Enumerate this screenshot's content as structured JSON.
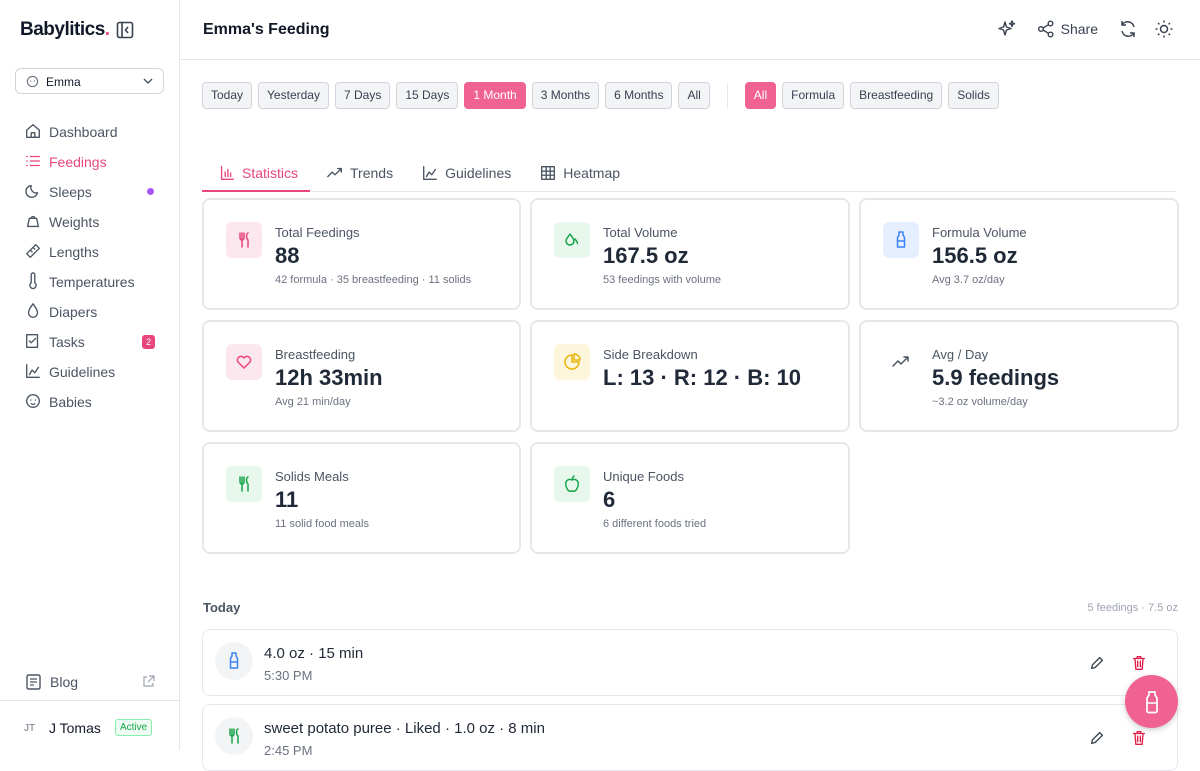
{
  "sidebar": {
    "brand": "Babylitics",
    "brand_dot": ".",
    "baby": "Emma",
    "nav": [
      {
        "label": "Dashboard"
      },
      {
        "label": "Feedings",
        "active": true
      },
      {
        "label": "Sleeps"
      },
      {
        "label": "Weights"
      },
      {
        "label": "Lengths"
      },
      {
        "label": "Temperatures"
      },
      {
        "label": "Diapers"
      },
      {
        "label": "Tasks",
        "badge": "2"
      },
      {
        "label": "Guidelines"
      },
      {
        "label": "Babies"
      }
    ],
    "blog": "Blog",
    "user_initials": "JT",
    "user_name": "J Tomas",
    "user_status": "Active"
  },
  "header": {
    "title": "Emma's Feeding",
    "share": "Share"
  },
  "range_filters": [
    {
      "label": "Today"
    },
    {
      "label": "Yesterday"
    },
    {
      "label": "7 Days"
    },
    {
      "label": "15 Days"
    },
    {
      "label": "1 Month",
      "active": true
    },
    {
      "label": "3 Months"
    },
    {
      "label": "6 Months"
    },
    {
      "label": "All"
    }
  ],
  "type_filters": [
    {
      "label": "All",
      "active": true
    },
    {
      "label": "Formula"
    },
    {
      "label": "Breastfeeding"
    },
    {
      "label": "Solids"
    }
  ],
  "tabs": [
    {
      "label": "Statistics",
      "active": true
    },
    {
      "label": "Trends"
    },
    {
      "label": "Guidelines"
    },
    {
      "label": "Heatmap"
    }
  ],
  "stats": [
    {
      "label": "Total Feedings",
      "value": "88",
      "detail": "42 formula · 35 breastfeeding · 11 solids"
    },
    {
      "label": "Total Volume",
      "value": "167.5 oz",
      "detail": "53 feedings with volume"
    },
    {
      "label": "Formula Volume",
      "value": "156.5 oz",
      "detail": "Avg 3.7 oz/day"
    },
    {
      "label": "Breastfeeding",
      "value": "12h 33min",
      "detail": "Avg 21 min/day"
    },
    {
      "label": "Side Breakdown",
      "value": "L: 13 · R: 12 · B: 10"
    },
    {
      "label": "Avg / Day",
      "value": "5.9 feedings",
      "detail": "~3.2 oz volume/day"
    },
    {
      "label": "Solids Meals",
      "value": "11",
      "detail": "11 solid food meals"
    },
    {
      "label": "Unique Foods",
      "value": "6",
      "detail": "6 different foods tried"
    }
  ],
  "today": {
    "title": "Today",
    "summary": "5 feedings · 7.5 oz",
    "entries": [
      {
        "title": "4.0 oz · 15 min",
        "time": "5:30 PM"
      },
      {
        "title": "sweet potato puree · Liked · 1.0 oz · 8 min",
        "time": "2:45 PM"
      }
    ]
  }
}
